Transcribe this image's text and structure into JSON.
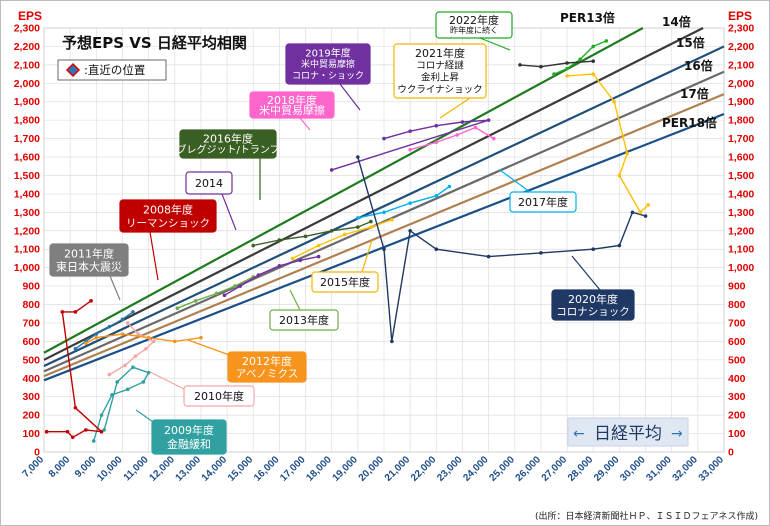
{
  "chart_data": {
    "type": "scatter",
    "title": "予想EPS VS 日経平均相関",
    "y_axis_label": "EPS",
    "x_axis_label": "日経平均",
    "xlim": [
      7000,
      33000
    ],
    "ylim": [
      0,
      2300
    ],
    "x_ticks": [
      "7,000",
      "8,000",
      "9,000",
      "10,000",
      "11,000",
      "12,000",
      "13,000",
      "14,000",
      "15,000",
      "16,000",
      "17,000",
      "18,000",
      "19,000",
      "20,000",
      "21,000",
      "22,000",
      "23,000",
      "24,000",
      "25,000",
      "26,000",
      "27,000",
      "28,000",
      "29,000",
      "30,000",
      "31,000",
      "32,000",
      "33,000"
    ],
    "y_ticks": [
      "0",
      "100",
      "200",
      "300",
      "400",
      "500",
      "600",
      "700",
      "800",
      "900",
      "1,000",
      "1,100",
      "1,200",
      "1,300",
      "1,400",
      "1,500",
      "1,600",
      "1,700",
      "1,800",
      "1,900",
      "2,000",
      "2,100",
      "2,200",
      "2,300"
    ],
    "grid": true,
    "legend": {
      "label": ":直近の位置",
      "marker_color": "#2e75b6",
      "marker_edge": "#e00000"
    },
    "per_lines": [
      {
        "label": "PER13倍",
        "per": 13,
        "color": "#1e7a1e"
      },
      {
        "label": "14倍",
        "per": 14,
        "color": "#3a3a3a"
      },
      {
        "label": "15倍",
        "per": 15,
        "color": "#1e4e79"
      },
      {
        "label": "16倍",
        "per": 16,
        "color": "#6a6a6a"
      },
      {
        "label": "17倍",
        "per": 17,
        "color": "#b08050"
      },
      {
        "label": "PER18倍",
        "per": 18,
        "color": "#1b4f8a"
      }
    ],
    "series": [
      {
        "name": "2009年度 金融緩和",
        "color": "#31a0a0",
        "points": [
          [
            8900,
            60
          ],
          [
            9200,
            200
          ],
          [
            9600,
            310
          ],
          [
            10200,
            340
          ],
          [
            10800,
            380
          ],
          [
            11000,
            430
          ],
          [
            10400,
            460
          ],
          [
            9800,
            380
          ],
          [
            9300,
            120
          ]
        ]
      },
      {
        "name": "2010年度",
        "color": "#f4a6a6",
        "points": [
          [
            9500,
            420
          ],
          [
            10100,
            470
          ],
          [
            10500,
            520
          ],
          [
            10900,
            560
          ],
          [
            11200,
            600
          ],
          [
            10600,
            640
          ],
          [
            10200,
            700
          ]
        ]
      },
      {
        "name": "2011年度 東日本大震災",
        "color": "#1f77b4",
        "points": [
          [
            8200,
            560
          ],
          [
            8600,
            600
          ],
          [
            9000,
            640
          ],
          [
            9500,
            680
          ],
          [
            10000,
            720
          ],
          [
            10400,
            760
          ]
        ]
      },
      {
        "name": "2012年度 アベノミクス",
        "color": "#f7941d",
        "points": [
          [
            8600,
            590
          ],
          [
            9000,
            620
          ],
          [
            10000,
            640
          ],
          [
            11000,
            620
          ],
          [
            12000,
            600
          ],
          [
            13000,
            620
          ]
        ]
      },
      {
        "name": "2008年度 リーマンショック",
        "color": "#c00000",
        "points": [
          [
            7100,
            110
          ],
          [
            7900,
            110
          ],
          [
            8100,
            80
          ],
          [
            8600,
            120
          ],
          [
            9200,
            110
          ],
          [
            8200,
            240
          ],
          [
            7700,
            760
          ],
          [
            8200,
            760
          ],
          [
            8800,
            820
          ]
        ]
      },
      {
        "name": "2013年度",
        "color": "#70ad47",
        "points": [
          [
            12100,
            780
          ],
          [
            12800,
            820
          ],
          [
            13600,
            860
          ],
          [
            14300,
            900
          ],
          [
            15000,
            950
          ]
        ]
      },
      {
        "name": "2014",
        "color": "#7030a0",
        "points": [
          [
            13900,
            850
          ],
          [
            14500,
            900
          ],
          [
            15200,
            960
          ],
          [
            16000,
            1010
          ],
          [
            16800,
            1040
          ],
          [
            17500,
            1060
          ]
        ]
      },
      {
        "name": "2015年度",
        "color": "#ffc000",
        "points": [
          [
            16500,
            1050
          ],
          [
            17500,
            1120
          ],
          [
            18500,
            1180
          ],
          [
            19500,
            1220
          ],
          [
            20300,
            1260
          ]
        ]
      },
      {
        "name": "2016年度 ブレグジット/トランプ",
        "color": "#3a5f23",
        "points": [
          [
            15000,
            1120
          ],
          [
            16000,
            1150
          ],
          [
            17000,
            1170
          ],
          [
            18000,
            1200
          ],
          [
            19000,
            1220
          ],
          [
            19500,
            1250
          ]
        ]
      },
      {
        "name": "2017年度",
        "color": "#00b0f0",
        "points": [
          [
            19000,
            1270
          ],
          [
            20000,
            1300
          ],
          [
            21000,
            1350
          ],
          [
            22000,
            1390
          ],
          [
            22500,
            1440
          ]
        ]
      },
      {
        "name": "2018年度 米中貿易摩擦",
        "color": "#ff66cc",
        "points": [
          [
            21000,
            1640
          ],
          [
            22000,
            1680
          ],
          [
            22800,
            1720
          ],
          [
            23500,
            1760
          ],
          [
            24200,
            1700
          ]
        ]
      },
      {
        "name": "2019年度 米中貿易摩擦 コロナ・ショック",
        "color": "#7030a0",
        "points": [
          [
            20000,
            1700
          ],
          [
            21000,
            1740
          ],
          [
            22000,
            1770
          ],
          [
            23000,
            1790
          ],
          [
            24000,
            1800
          ],
          [
            18000,
            1530
          ]
        ]
      },
      {
        "name": "2020年度 コロナショック",
        "color": "#1f3864",
        "points": [
          [
            19000,
            1600
          ],
          [
            20000,
            1100
          ],
          [
            20300,
            600
          ],
          [
            21000,
            1200
          ],
          [
            22000,
            1100
          ],
          [
            24000,
            1060
          ],
          [
            26000,
            1080
          ],
          [
            28000,
            1100
          ],
          [
            29000,
            1120
          ],
          [
            29500,
            1300
          ],
          [
            30000,
            1280
          ]
        ]
      },
      {
        "name": "2021年度 コロナ経謎 金利上昇 ウクライナショック",
        "color": "#ffc000",
        "points": [
          [
            27000,
            2040
          ],
          [
            28000,
            2050
          ],
          [
            28800,
            1900
          ],
          [
            29300,
            1620
          ],
          [
            29000,
            1500
          ],
          [
            29800,
            1300
          ],
          [
            30100,
            1340
          ]
        ]
      },
      {
        "name": "2022年度 昨年度に続く",
        "color": "#22aa22",
        "points": [
          [
            26500,
            2050
          ],
          [
            27000,
            2080
          ],
          [
            27500,
            2130
          ],
          [
            28000,
            2200
          ],
          [
            28500,
            2230
          ]
        ]
      },
      {
        "name": "PER13倍",
        "color": "#333333",
        "points": [
          [
            25200,
            2100
          ],
          [
            26000,
            2090
          ],
          [
            27000,
            2110
          ],
          [
            28000,
            2120
          ]
        ]
      }
    ],
    "annotations": [
      {
        "text": "2022年度\n昨年度に続く"
      },
      {
        "text": "2021年度\nコロナ経謎\n金利上昇\nウクライナショック"
      },
      {
        "text": "2019年度\n米中貿易摩擦\nコロナ・ショック"
      },
      {
        "text": "2018年度\n米中貿易摩擦"
      },
      {
        "text": "2016年度\nブレグジット/トランプ"
      },
      {
        "text": "2014"
      },
      {
        "text": "2008年度\nリーマンショック"
      },
      {
        "text": "2011年度\n東日本大震災"
      },
      {
        "text": "2017年度"
      },
      {
        "text": "2015年度"
      },
      {
        "text": "2013年度"
      },
      {
        "text": "2012年度\nアベノミクス"
      },
      {
        "text": "2010年度"
      },
      {
        "text": "2009年度\n金融緩和"
      },
      {
        "text": "2020年度\nコロナショック"
      }
    ]
  },
  "credit": "(出所：日本経済新聞社ＨＰ、ＩＳＩＤフェアネス作成)"
}
